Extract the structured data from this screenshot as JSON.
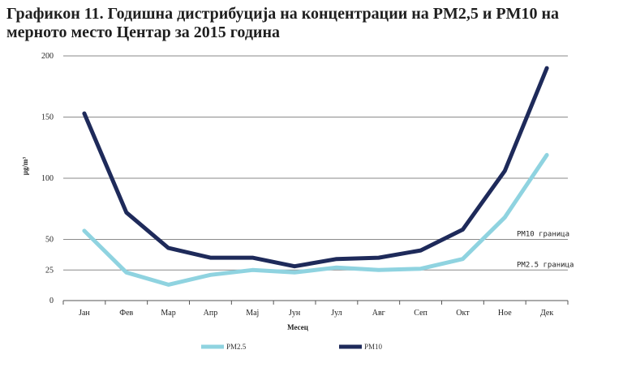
{
  "chart_data": {
    "type": "line",
    "title": "Графикон 11. Годишна дистрибуција на концентрации на PM2,5 и PM10 на мерното место Центар за 2015 година",
    "xlabel": "Месец",
    "ylabel": "µg/m³",
    "ylim": [
      0,
      200
    ],
    "yticks": [
      0,
      25,
      50,
      100,
      150,
      200
    ],
    "grid": true,
    "legend_position": "bottom",
    "categories": [
      "Јан",
      "Фев",
      "Мар",
      "Апр",
      "Мај",
      "Јун",
      "Јул",
      "Авг",
      "Сеп",
      "Окт",
      "Ное",
      "Дек"
    ],
    "series": [
      {
        "name": "PM2.5",
        "color": "#8fd3e0",
        "values": [
          57,
          23,
          13,
          21,
          25,
          23,
          27,
          25,
          26,
          34,
          68,
          119
        ]
      },
      {
        "name": "PM10",
        "color": "#1e2a5a",
        "values": [
          153,
          72,
          43,
          35,
          35,
          28,
          34,
          35,
          41,
          58,
          106,
          190
        ]
      }
    ],
    "reference_lines": [
      {
        "label": "PM10 граница",
        "value": 50
      },
      {
        "label": "PM2.5 граница",
        "value": 25
      }
    ]
  }
}
